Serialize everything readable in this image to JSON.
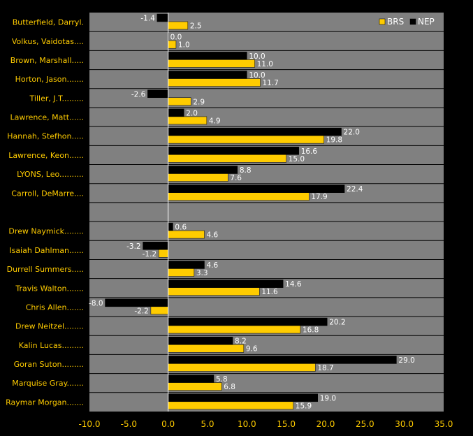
{
  "chart_data": {
    "type": "bar",
    "orientation": "horizontal",
    "title": "",
    "xlabel": "",
    "ylabel": "",
    "xlim": [
      -10,
      35
    ],
    "x_ticks": [
      "-10.0",
      "-5.0",
      "0.0",
      "5.0",
      "10.0",
      "15.0",
      "20.0",
      "25.0",
      "30.0",
      "35.0"
    ],
    "legend_position": "top-right",
    "grid": true,
    "categories": [
      "Butterfield, Darryl.",
      "Volkus, Vaidotas....",
      "Brown, Marshall.....",
      "Horton, Jason.......",
      "Tiller, J.T.........",
      "Lawrence, Matt......",
      "Hannah, Stefhon.....",
      "Lawrence, Keon......",
      "LYONS, Leo..........",
      "Carroll, DeMarre....",
      "",
      "Drew Naymick........",
      "Isaiah Dahlman......",
      "Durrell Summers.....",
      "Travis Walton.......",
      "Chris Allen.......",
      "Drew Neitzel........",
      "Kalin Lucas.........",
      "Goran Suton.........",
      "Marquise Gray.......",
      "Raymar Morgan......."
    ],
    "series": [
      {
        "name": "NEP",
        "color": "#000000",
        "values": [
          -1.4,
          0.0,
          10.0,
          10.0,
          -2.6,
          2.0,
          22.0,
          16.6,
          8.8,
          22.4,
          null,
          0.6,
          -3.2,
          4.6,
          14.6,
          -8.0,
          20.2,
          8.2,
          29.0,
          5.8,
          19.0
        ],
        "labels": [
          "-1.4",
          "0.0",
          "10.0",
          "10.0",
          "-2.6",
          "2.0",
          "22.0",
          "16.6",
          "8.8",
          "22.4",
          "",
          "0.6",
          "-3.2",
          "4.6",
          "14.6",
          "-8.0",
          "20.2",
          "8.2",
          "29.0",
          "5.8",
          "19.0"
        ]
      },
      {
        "name": "BRS",
        "color": "#FFCC00",
        "values": [
          2.5,
          1.0,
          11.0,
          11.7,
          2.9,
          4.9,
          19.8,
          15.0,
          7.6,
          17.9,
          null,
          4.6,
          -1.2,
          3.3,
          11.6,
          -2.2,
          16.8,
          9.6,
          18.7,
          6.8,
          15.9
        ],
        "labels": [
          "2.5",
          "1.0",
          "11.0",
          "11.7",
          "2.9",
          "4.9",
          "19.8",
          "15.0",
          "7.6",
          "17.9",
          "",
          "4.6",
          "-1.2",
          "3.3",
          "11.6",
          "-2.2",
          "16.8",
          "9.6",
          "18.7",
          "6.8",
          "15.9"
        ]
      }
    ],
    "legend": [
      "BRS",
      "NEP"
    ],
    "colors": {
      "background": "#000000",
      "plot_area": "#808080",
      "category_text": "#FFCC00",
      "value_text": "#FFFFFF",
      "zero_line": "#FFFFFF",
      "grid_line": "#000000"
    }
  }
}
